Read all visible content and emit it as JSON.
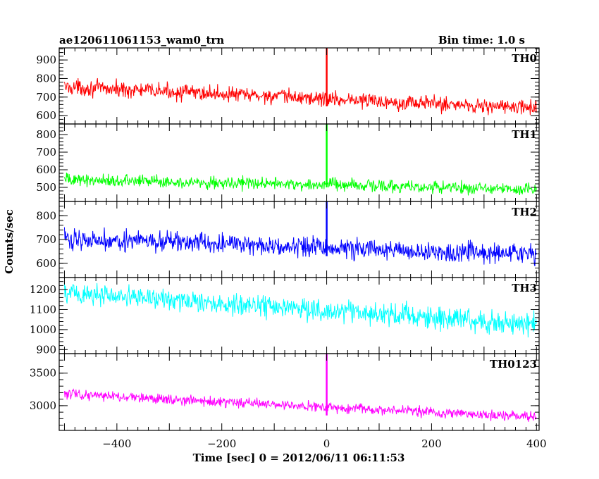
{
  "header": {
    "title": "ae120611061153_wam0_trn",
    "bin_time": "Bin time: 1.0 s"
  },
  "axes": {
    "ylabel": "Counts/sec",
    "xlabel": "Time [sec] 0 = 2012/06/11 06:11:53"
  },
  "chart_data": {
    "type": "line",
    "title": "ae120611061153_wam0_trn",
    "xlabel": "Time [sec] 0 = 2012/06/11 06:11:53",
    "ylabel": "Counts/sec",
    "xlim": [
      -510,
      405
    ],
    "x_ticks": [
      -400,
      -200,
      0,
      200,
      400
    ],
    "x_range": [
      -500,
      400
    ],
    "x_step": 1,
    "panels": [
      {
        "name": "TH0",
        "color": "#ff0000",
        "ylim": [
          555,
          965
        ],
        "y_ticks": [
          600,
          700,
          800,
          900
        ],
        "start_level": 755,
        "end_level": 640,
        "noise_amplitude": 30,
        "spike": {
          "x": 0,
          "y_max": 965,
          "y_min": 650
        }
      },
      {
        "name": "TH1",
        "color": "#00ff00",
        "ylim": [
          420,
          860
        ],
        "y_ticks": [
          500,
          600,
          700,
          800
        ],
        "start_level": 545,
        "end_level": 490,
        "noise_amplitude": 25,
        "spike": {
          "x": 0,
          "y_max": 860,
          "y_min": 500
        }
      },
      {
        "name": "TH2",
        "color": "#0000ff",
        "ylim": [
          540,
          860
        ],
        "y_ticks": [
          600,
          700,
          800
        ],
        "start_level": 705,
        "end_level": 635,
        "noise_amplitude": 30,
        "spike": {
          "x": 0,
          "y_max": 860,
          "y_min": 630
        }
      },
      {
        "name": "TH3",
        "color": "#00ffff",
        "ylim": [
          880,
          1260
        ],
        "y_ticks": [
          900,
          1000,
          1100,
          1200
        ],
        "start_level": 1185,
        "end_level": 1025,
        "noise_amplitude": 40,
        "spike": null
      },
      {
        "name": "TH0123",
        "color": "#ff00ff",
        "ylim": [
          2620,
          3800
        ],
        "y_ticks": [
          3000,
          3500
        ],
        "start_level": 3180,
        "end_level": 2820,
        "noise_amplitude": 55,
        "spike": {
          "x": 0,
          "y_max": 3800,
          "y_min": 2850
        }
      }
    ]
  }
}
